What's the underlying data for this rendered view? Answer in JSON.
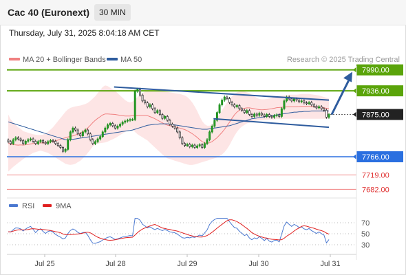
{
  "header": {
    "instrument": "Cac 40 (Euronext)",
    "timeframe": "30 MIN",
    "datetime": "Thursday, July 31, 2025 8:04:18 AM CET"
  },
  "legend": {
    "ma20": "MA 20 + Bollinger Bands",
    "ma50": "MA 50",
    "credit": "Research © 2025 Trading Central",
    "rsi": "RSI",
    "ma9": "9MA"
  },
  "colors": {
    "ma20": "#f08080",
    "bollinger_fill": "#fde0e0",
    "ma50": "#2e5c9e",
    "resistance": "#5aa40a",
    "support": "#2a6fe0",
    "lower_target": "#f08080",
    "current": "#222222",
    "rsi": "#4a78d0",
    "rsi_ma": "#e02020",
    "arrow": "#2e5c9e"
  },
  "chart_data": [
    {
      "type": "candlestick",
      "x_ticks": [
        "Jul 25",
        "Jul 28",
        "Jul 29",
        "Jul 30",
        "Jul 31"
      ],
      "ylim": [
        7665,
        8000
      ],
      "levels": [
        {
          "label": "7990.00",
          "value": 7990,
          "kind": "resistance"
        },
        {
          "label": "7936.00",
          "value": 7936,
          "kind": "resistance"
        },
        {
          "label": "7875.00",
          "value": 7875,
          "kind": "current"
        },
        {
          "label": "7766.00",
          "value": 7766,
          "kind": "support"
        },
        {
          "label": "7719.00",
          "value": 7719,
          "kind": "target"
        },
        {
          "label": "7682.00",
          "value": 7682,
          "kind": "target"
        }
      ],
      "close": [
        7805,
        7800,
        7810,
        7815,
        7812,
        7808,
        7800,
        7806,
        7810,
        7812,
        7806,
        7800,
        7805,
        7808,
        7803,
        7800,
        7805,
        7808,
        7806,
        7800,
        7795,
        7790,
        7780,
        7785,
        7810,
        7830,
        7840,
        7835,
        7825,
        7820,
        7830,
        7835,
        7825,
        7810,
        7800,
        7805,
        7812,
        7818,
        7830,
        7840,
        7848,
        7852,
        7846,
        7840,
        7845,
        7850,
        7855,
        7858,
        7860,
        7862,
        7862,
        7935,
        7940,
        7925,
        7910,
        7905,
        7895,
        7900,
        7890,
        7880,
        7885,
        7875,
        7865,
        7870,
        7860,
        7850,
        7845,
        7840,
        7830,
        7815,
        7800,
        7795,
        7798,
        7792,
        7796,
        7790,
        7794,
        7797,
        7790,
        7800,
        7810,
        7830,
        7845,
        7860,
        7880,
        7900,
        7912,
        7920,
        7916,
        7906,
        7900,
        7895,
        7898,
        7890,
        7886,
        7880,
        7885,
        7875,
        7870,
        7876,
        7873,
        7878,
        7874,
        7870,
        7875,
        7870,
        7868,
        7872,
        7874,
        7870,
        7890,
        7910,
        7920,
        7915,
        7910,
        7915,
        7912,
        7908,
        7910,
        7905,
        7903,
        7906,
        7900,
        7896,
        7892,
        7895,
        7890,
        7886,
        7868,
        7875
      ],
      "bollinger_upper": [
        7875,
        7862,
        7855,
        7848,
        7842,
        7838,
        7832,
        7830,
        7828,
        7826,
        7824,
        7823,
        7822,
        7822,
        7823,
        7826,
        7830,
        7836,
        7842,
        7850,
        7858,
        7866,
        7874,
        7882,
        7888,
        7892,
        7894,
        7896,
        7897,
        7898,
        7900,
        7902,
        7905,
        7910,
        7916,
        7922,
        7930,
        7938,
        7946,
        7950,
        7948,
        7944,
        7940,
        7936,
        7930,
        7924,
        7918,
        7912,
        7908,
        7906,
        7908,
        7914,
        7920,
        7926,
        7930,
        7934,
        7936,
        7937,
        7938,
        7938,
        7937,
        7936,
        7935,
        7934,
        7933,
        7932,
        7931,
        7930,
        7929,
        7928,
        7926,
        7924,
        7920,
        7914,
        7906,
        7896,
        7884,
        7870,
        7858,
        7850,
        7846,
        7846,
        7850,
        7858,
        7866,
        7876,
        7886,
        7896,
        7906,
        7914,
        7922,
        7928,
        7932,
        7934,
        7935,
        7934,
        7932,
        7930,
        7926,
        7922,
        7918,
        7915,
        7914,
        7914,
        7915,
        7916,
        7918,
        7920,
        7922,
        7923,
        7924,
        7924,
        7925,
        7926,
        7926,
        7926,
        7926,
        7927,
        7928,
        7928,
        7928,
        7928,
        7927,
        7926,
        7925,
        7924,
        7922,
        7920,
        7918,
        7916
      ],
      "bollinger_lower": [
        7728,
        7734,
        7740,
        7745,
        7750,
        7755,
        7760,
        7764,
        7768,
        7772,
        7776,
        7778,
        7780,
        7782,
        7780,
        7778,
        7776,
        7772,
        7768,
        7764,
        7760,
        7756,
        7752,
        7748,
        7746,
        7745,
        7746,
        7748,
        7752,
        7756,
        7762,
        7768,
        7776,
        7784,
        7792,
        7798,
        7800,
        7801,
        7802,
        7803,
        7805,
        7808,
        7811,
        7814,
        7818,
        7822,
        7826,
        7830,
        7834,
        7836,
        7836,
        7830,
        7824,
        7820,
        7816,
        7812,
        7808,
        7802,
        7796,
        7790,
        7784,
        7778,
        7772,
        7766,
        7762,
        7760,
        7758,
        7756,
        7754,
        7752,
        7750,
        7748,
        7746,
        7745,
        7745,
        7746,
        7748,
        7750,
        7752,
        7754,
        7756,
        7758,
        7760,
        7762,
        7764,
        7768,
        7772,
        7778,
        7786,
        7796,
        7808,
        7820,
        7830,
        7838,
        7844,
        7848,
        7852,
        7854,
        7856,
        7858,
        7859,
        7860,
        7860,
        7861,
        7861,
        7862,
        7862,
        7862,
        7863,
        7863,
        7863,
        7864,
        7864,
        7864,
        7864,
        7864,
        7864,
        7864,
        7864,
        7864,
        7864,
        7864,
        7864,
        7864,
        7864,
        7864,
        7864,
        7864,
        7864,
        7864
      ],
      "ma50": [
        7856,
        7854,
        7852,
        7850,
        7848,
        7846,
        7844,
        7842,
        7840,
        7838,
        7836,
        7834,
        7832,
        7830,
        7828,
        7826,
        7824,
        7822,
        7820,
        7818,
        7816,
        7814,
        7812,
        7810,
        7810,
        7810,
        7811,
        7812,
        7813,
        7814,
        7815,
        7816,
        7817,
        7818,
        7819,
        7820,
        7821,
        7822,
        7823,
        7824,
        7825,
        7826,
        7827,
        7828,
        7829,
        7830,
        7831,
        7832,
        7833,
        7834,
        7835,
        7837,
        7839,
        7841,
        7843,
        7845,
        7847,
        7848,
        7849,
        7850,
        7850,
        7851,
        7851,
        7851,
        7851,
        7850,
        7849,
        7848,
        7847,
        7846,
        7845,
        7844,
        7843,
        7842,
        7841,
        7840,
        7839,
        7838,
        7837,
        7837,
        7837,
        7838,
        7839,
        7840,
        7841,
        7842,
        7843,
        7844,
        7845,
        7846,
        7848,
        7850,
        7852,
        7854,
        7856,
        7858,
        7860,
        7862,
        7864,
        7865,
        7866,
        7867,
        7868,
        7869,
        7870,
        7871,
        7872,
        7873,
        7874,
        7875,
        7876,
        7877,
        7878,
        7879,
        7880,
        7881,
        7881,
        7882,
        7882,
        7883,
        7883,
        7883,
        7884,
        7884,
        7884,
        7884,
        7884,
        7884,
        7884,
        7884
      ],
      "channel": {
        "upper": [
          [
            7946,
            0.4
          ],
          [
            7912,
            1.0
          ]
        ],
        "lower": [
          [
            7864,
            0.4
          ],
          [
            7842,
            1.0
          ]
        ],
        "top_left": [
          [
            7946,
            0.0
          ],
          [
            7946,
            0.4
          ]
        ]
      }
    },
    {
      "type": "line",
      "name": "RSI",
      "y_ticks": [
        30,
        50,
        70
      ],
      "ylim": [
        15,
        85
      ]
    }
  ]
}
